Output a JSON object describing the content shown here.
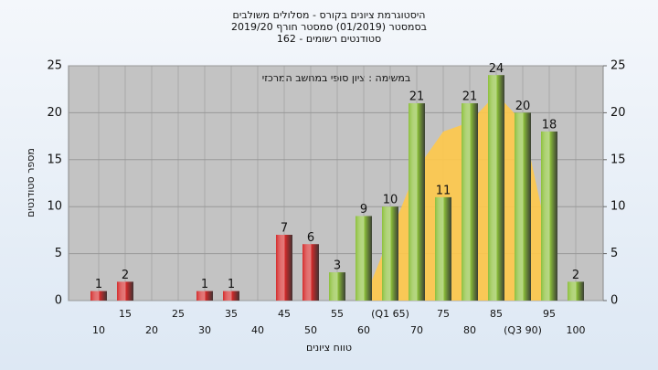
{
  "chart_data": {
    "type": "bar",
    "title": "היסטוגרמת ציונים בקורס - מסלולים משולבים",
    "subtitle": "בסמסטר  (01/2019)  סמסטר חורף 2019/20",
    "subtitle2": "סטודנטים רשומים - 162",
    "annotation": "במשימה : ציון סופי במחשב המרכזי",
    "ylabel": "מספר סטודנטים",
    "xlabel": "טווח ציונים",
    "categories": [
      "10",
      "15",
      "20",
      "25",
      "30",
      "35",
      "40",
      "45",
      "50",
      "55",
      "60",
      "(Q1 65)",
      "70",
      "75",
      "80",
      "85",
      "(Q3 90)",
      "95",
      "100"
    ],
    "values": [
      1,
      2,
      0,
      0,
      1,
      1,
      0,
      7,
      6,
      3,
      9,
      10,
      21,
      11,
      21,
      24,
      20,
      18,
      2
    ],
    "colors": [
      "#d42a2a",
      "#d42a2a",
      "#d42a2a",
      "#d42a2a",
      "#d42a2a",
      "#d42a2a",
      "#d42a2a",
      "#d42a2a",
      "#d42a2a",
      "#8cbf3a",
      "#8cbf3a",
      "#8cbf3a",
      "#8cbf3a",
      "#8cbf3a",
      "#8cbf3a",
      "#8cbf3a",
      "#8cbf3a",
      "#8cbf3a",
      "#8cbf3a"
    ],
    "curve": {
      "color": "#ffc94a",
      "values": [
        null,
        null,
        null,
        null,
        null,
        null,
        null,
        null,
        null,
        null,
        0,
        7,
        14,
        18,
        19,
        22,
        19,
        6,
        null
      ]
    },
    "ylim": [
      0,
      25
    ],
    "yticks": [
      0,
      5,
      10,
      15,
      20,
      25
    ],
    "y2lim": [
      0,
      25
    ],
    "y2ticks": [
      0,
      5,
      10,
      15,
      20,
      25
    ],
    "grid": true
  }
}
